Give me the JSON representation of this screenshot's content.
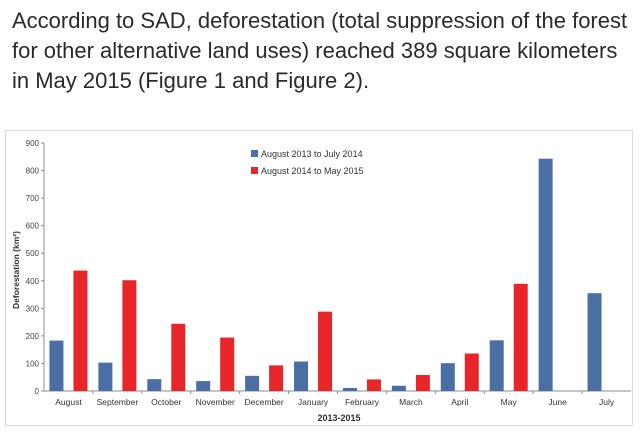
{
  "text": {
    "intro": "According to SAD, deforestation (total suppression of the forest for other alternative land uses) reached 389 square kilometers in May 2015 (Figure 1 and Figure 2)."
  },
  "chart_data": {
    "type": "bar",
    "xlabel": "2013-2015",
    "ylabel": "Deforestation (km²)",
    "ylim": [
      0,
      900
    ],
    "yticks": [
      0,
      100,
      200,
      300,
      400,
      500,
      600,
      700,
      800,
      900
    ],
    "grid": false,
    "legend_position": "top-center",
    "categories": [
      "August",
      "September",
      "October",
      "November",
      "December",
      "January",
      "February",
      "March",
      "April",
      "May",
      "June",
      "July"
    ],
    "series": [
      {
        "name": "August 2013 to July 2014",
        "color": "#4a6fa5",
        "values": [
          183,
          103,
          43,
          36,
          55,
          107,
          11,
          19,
          101,
          184,
          843,
          355
        ]
      },
      {
        "name": "August 2014 to May 2015",
        "color": "#e8262a",
        "values": [
          437,
          402,
          244,
          194,
          93,
          288,
          42,
          58,
          136,
          389,
          null,
          null
        ]
      }
    ]
  }
}
